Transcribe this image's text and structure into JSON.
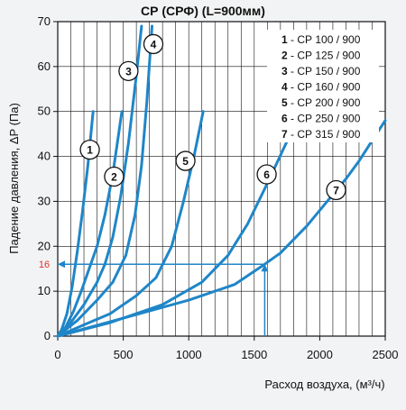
{
  "chart_data": {
    "type": "line",
    "title": "СР (СРФ) (L=900мм)",
    "xlabel": "Расход воздуха, (м³/ч)",
    "ylabel": "Падение давления, ΔP (Па)",
    "xlim": [
      0,
      2500
    ],
    "ylim": [
      0,
      70
    ],
    "xticks": [
      0,
      500,
      1000,
      1500,
      2000,
      2500
    ],
    "yticks": [
      0,
      10,
      20,
      30,
      40,
      50,
      60,
      70
    ],
    "grid": true,
    "line_color": "#1f86c8",
    "marker_color": "#e03030",
    "legend_position": "top-right",
    "legend": [
      {
        "num": "1",
        "text": "- СР 100 / 900"
      },
      {
        "num": "2",
        "text": "- СР 125 / 900"
      },
      {
        "num": "3",
        "text": "- СР 150 / 900"
      },
      {
        "num": "4",
        "text": "- СР 160 / 900"
      },
      {
        "num": "5",
        "text": "- СР 200 / 900"
      },
      {
        "num": "6",
        "text": "- СР 250 / 900"
      },
      {
        "num": "7",
        "text": "- СР 315 / 900"
      }
    ],
    "series": [
      {
        "label": "1",
        "x": [
          0,
          30,
          70,
          110,
          150,
          190,
          230,
          270
        ],
        "y": [
          0,
          1.5,
          5,
          11,
          19,
          28,
          38,
          50
        ],
        "badge_at": [
          245,
          41.5
        ]
      },
      {
        "label": "2",
        "x": [
          0,
          60,
          120,
          180,
          240,
          300,
          360,
          420,
          490
        ],
        "y": [
          0,
          2,
          5.5,
          10,
          15,
          20,
          27,
          36,
          50
        ],
        "badge_at": [
          430,
          35.5
        ]
      },
      {
        "label": "3",
        "x": [
          0,
          100,
          200,
          300,
          360,
          420,
          480,
          540,
          600,
          640
        ],
        "y": [
          0,
          3,
          7,
          12,
          16,
          22,
          31,
          43,
          58,
          69
        ],
        "badge_at": [
          540,
          59
        ]
      },
      {
        "label": "4",
        "x": [
          0,
          150,
          300,
          420,
          520,
          590,
          640,
          680,
          720
        ],
        "y": [
          0,
          3.5,
          8,
          12,
          18,
          27,
          38,
          52,
          69
        ],
        "badge_at": [
          730,
          65
        ]
      },
      {
        "label": "5",
        "x": [
          0,
          200,
          400,
          600,
          750,
          870,
          960,
          1040,
          1110
        ],
        "y": [
          0,
          2.5,
          5,
          9,
          13,
          20,
          30,
          40,
          50
        ],
        "badge_at": [
          975,
          39
        ]
      },
      {
        "label": "6",
        "x": [
          0,
          400,
          800,
          1100,
          1300,
          1450,
          1600,
          1760
        ],
        "y": [
          0,
          3,
          7,
          12,
          18,
          25,
          34,
          44
        ],
        "badge_at": [
          1595,
          36
        ]
      },
      {
        "label": "7",
        "x": [
          0,
          500,
          1000,
          1350,
          1580,
          1700,
          1800,
          1900,
          2000,
          2100,
          2200,
          2300,
          2400,
          2500
        ],
        "y": [
          0,
          4,
          8,
          11.5,
          16,
          18.5,
          21.5,
          24.5,
          28,
          31.5,
          35,
          39,
          43.5,
          48
        ],
        "badge_at": [
          2125,
          32.5
        ]
      }
    ],
    "example": {
      "x": 1580,
      "y": 16,
      "label": "16"
    }
  }
}
